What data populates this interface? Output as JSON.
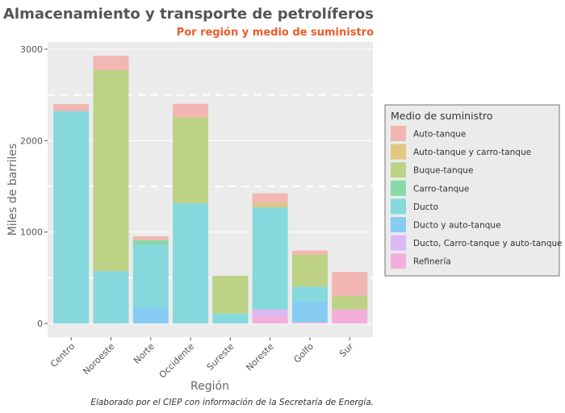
{
  "chart_data": {
    "type": "bar",
    "stacked": true,
    "title": "Almacenamiento y transporte de petrolíferos",
    "subtitle": "Por región y medio de suministro",
    "xlabel": "Región",
    "ylabel": "Miles de barriles",
    "caption": "Elaborado por el CIEP con información de la Secretaría de Energía.",
    "ylim": [
      0,
      3100
    ],
    "yticks": [
      0,
      1000,
      2000,
      3000
    ],
    "grid": true,
    "legend_title": "Medio de suministro",
    "legend_position": "right",
    "categories": [
      "Centro",
      "Noroeste",
      "Norte",
      "Occidente",
      "Sureste",
      "Noreste",
      "Golfo",
      "Sur"
    ],
    "series": [
      {
        "name": "Refinería",
        "color": "#f4aedc",
        "values": [
          0,
          0,
          0,
          0,
          0,
          74,
          12,
          153
        ]
      },
      {
        "name": "Ducto, Carro-tanque y auto-tanque",
        "color": "#dcb9f2",
        "values": [
          0,
          0,
          0,
          0,
          0,
          79,
          0,
          0
        ]
      },
      {
        "name": "Ducto y auto-tanque",
        "color": "#85cbf2",
        "values": [
          0,
          0,
          176,
          0,
          0,
          0,
          229,
          0
        ]
      },
      {
        "name": "Ducto",
        "color": "#85d8dc",
        "values": [
          2323,
          573,
          683,
          1315,
          109,
          1117,
          162,
          0
        ]
      },
      {
        "name": "Carro-tanque",
        "color": "#87d9a8",
        "values": [
          0,
          0,
          50,
          0,
          0,
          0,
          0,
          0
        ]
      },
      {
        "name": "Buque-tanque",
        "color": "#bdd284",
        "values": [
          0,
          2197,
          0,
          941,
          412,
          0,
          350,
          147
        ]
      },
      {
        "name": "Auto-tanque y carro-tanque",
        "color": "#e0c882",
        "values": [
          0,
          0,
          0,
          0,
          0,
          50,
          0,
          0
        ]
      },
      {
        "name": "Auto-tanque",
        "color": "#f2b6b3",
        "values": [
          77,
          156,
          44,
          147,
          0,
          103,
          44,
          265
        ]
      }
    ],
    "legend_order": [
      "Auto-tanque",
      "Auto-tanque y carro-tanque",
      "Buque-tanque",
      "Carro-tanque",
      "Ducto",
      "Ducto y auto-tanque",
      "Ducto, Carro-tanque y auto-tanque",
      "Refinería"
    ]
  }
}
